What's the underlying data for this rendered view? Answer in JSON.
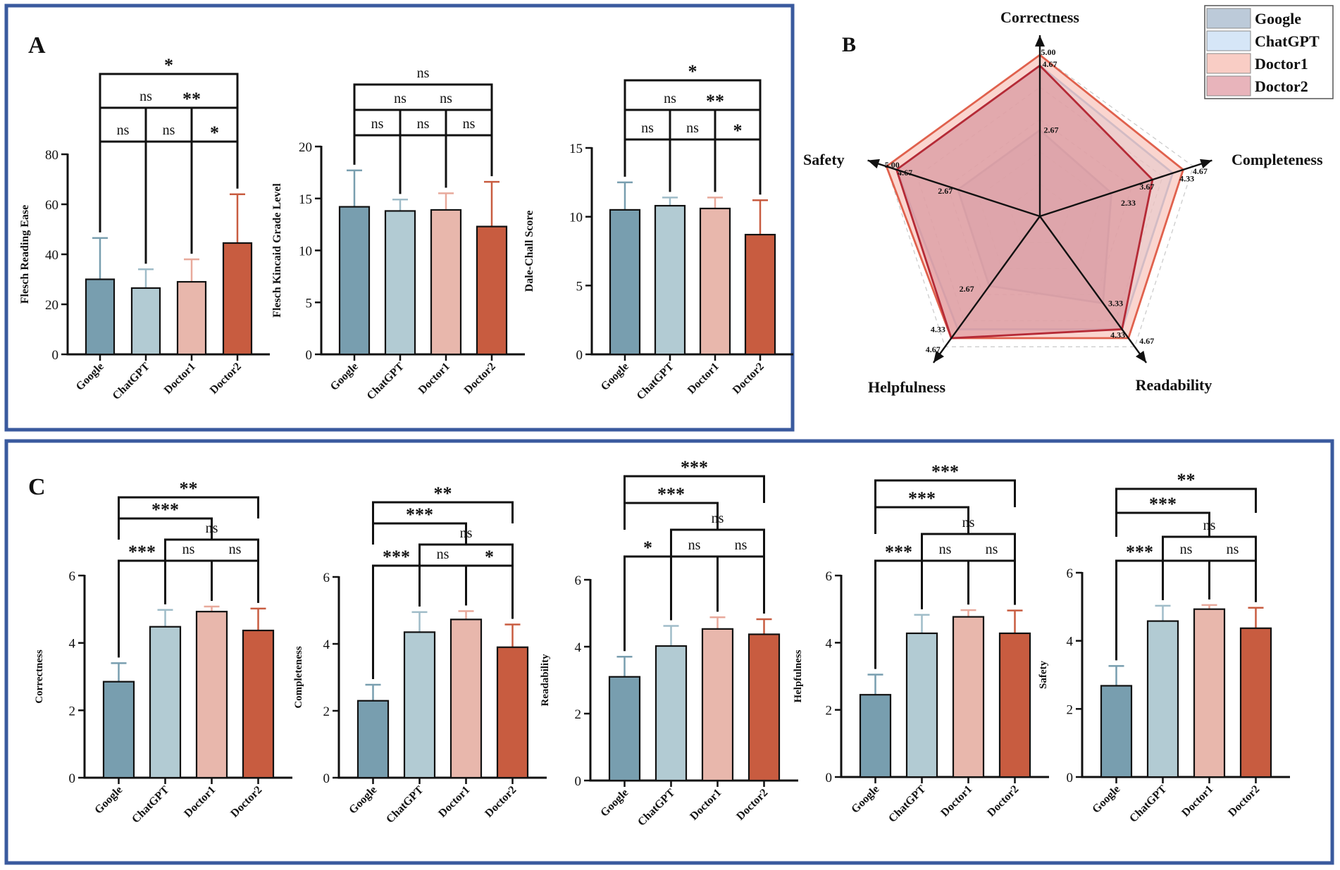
{
  "figure": {
    "panel_letters": {
      "a": "A",
      "b": "B",
      "c": "C"
    },
    "groups": [
      "Google",
      "ChatGPT",
      "Doctor1",
      "Doctor2"
    ],
    "colors": {
      "bars": [
        "#789eaf",
        "#b2cbd3",
        "#e8b7ac",
        "#c85c40"
      ],
      "errs": [
        "#789eaf",
        "#9fbcc8",
        "#e8a99b",
        "#c85c40"
      ],
      "panel_border": "#3a5a9e",
      "radar_lines": [
        "#7f93b2",
        "#a7c6e6",
        "#e0614d",
        "#b52a36"
      ],
      "radar_fills": [
        "#a9b7cc",
        "#cfe1f5",
        "#f6b3a7",
        "#d98a93"
      ],
      "legend_swatches": [
        "#bccad9",
        "#d6e6f7",
        "#f9cdc5",
        "#e8b4bb"
      ]
    }
  },
  "chart_data": [
    {
      "id": "A1",
      "type": "bar",
      "panel": "A",
      "categories": [
        "Google",
        "ChatGPT",
        "Doctor1",
        "Doctor2"
      ],
      "values": [
        30,
        26.5,
        29,
        44.5
      ],
      "errors": [
        16.5,
        7.5,
        9,
        19.5
      ],
      "ylabel": "Flesch Reading Ease",
      "ylim": [
        0,
        80
      ],
      "yticks": [
        0,
        20,
        40,
        60,
        80
      ],
      "tick_labels": [
        "0",
        "20",
        "40",
        "60",
        "80"
      ],
      "significance": [
        {
          "from": 0,
          "to": 1,
          "level": 1,
          "label": "ns"
        },
        {
          "from": 1,
          "to": 2,
          "level": 1,
          "label": "ns"
        },
        {
          "from": 2,
          "to": 3,
          "level": 1,
          "label": "*"
        },
        {
          "from": 0,
          "to": 2,
          "level": 2,
          "label": "ns"
        },
        {
          "from": 1,
          "to": 3,
          "level": 2,
          "label": "**"
        },
        {
          "from": 0,
          "to": 3,
          "level": 3,
          "label": "*"
        }
      ]
    },
    {
      "id": "A2",
      "type": "bar",
      "panel": "A",
      "categories": [
        "Google",
        "ChatGPT",
        "Doctor1",
        "Doctor2"
      ],
      "values": [
        14.2,
        13.8,
        13.9,
        12.3
      ],
      "errors": [
        3.5,
        1.1,
        1.6,
        4.3
      ],
      "ylabel": "Flesch Kincaid Grade Level",
      "ylim": [
        0,
        20
      ],
      "yticks": [
        0,
        5,
        10,
        15,
        20
      ],
      "tick_labels": [
        "0",
        "5",
        "10",
        "15",
        "20"
      ],
      "significance": [
        {
          "from": 0,
          "to": 1,
          "level": 1,
          "label": "ns"
        },
        {
          "from": 1,
          "to": 2,
          "level": 1,
          "label": "ns"
        },
        {
          "from": 2,
          "to": 3,
          "level": 1,
          "label": "ns"
        },
        {
          "from": 0,
          "to": 2,
          "level": 2,
          "label": "ns"
        },
        {
          "from": 1,
          "to": 3,
          "level": 2,
          "label": "ns"
        },
        {
          "from": 0,
          "to": 3,
          "level": 3,
          "label": "ns"
        }
      ]
    },
    {
      "id": "A3",
      "type": "bar",
      "panel": "A",
      "categories": [
        "Google",
        "ChatGPT",
        "Doctor1",
        "Doctor2"
      ],
      "values": [
        10.5,
        10.8,
        10.6,
        8.7
      ],
      "errors": [
        2.0,
        0.6,
        0.8,
        2.5
      ],
      "ylabel": "Dale-Chall Score",
      "ylim": [
        0,
        15
      ],
      "yticks": [
        0,
        5,
        10,
        15
      ],
      "tick_labels": [
        "0",
        "5",
        "10",
        "15"
      ],
      "significance": [
        {
          "from": 0,
          "to": 1,
          "level": 1,
          "label": "ns"
        },
        {
          "from": 1,
          "to": 2,
          "level": 1,
          "label": "ns"
        },
        {
          "from": 2,
          "to": 3,
          "level": 1,
          "label": "*"
        },
        {
          "from": 0,
          "to": 2,
          "level": 2,
          "label": "ns"
        },
        {
          "from": 1,
          "to": 3,
          "level": 2,
          "label": "**"
        },
        {
          "from": 0,
          "to": 3,
          "level": 3,
          "label": "*"
        }
      ]
    },
    {
      "id": "B",
      "type": "radar",
      "panel": "B",
      "axes": [
        "Correctness",
        "Completeness",
        "Readability",
        "Helpfulness",
        "Safety"
      ],
      "rmax": 5,
      "series": [
        {
          "name": "Google",
          "values": [
            2.67,
            2.33,
            3.33,
            2.67,
            2.67
          ]
        },
        {
          "name": "ChatGPT",
          "values": [
            4.67,
            4.33,
            4.33,
            4.33,
            4.67
          ]
        },
        {
          "name": "Doctor1",
          "values": [
            5.0,
            4.67,
            4.67,
            4.67,
            5.0
          ]
        },
        {
          "name": "Doctor2",
          "values": [
            4.67,
            3.67,
            4.33,
            4.67,
            4.67
          ]
        }
      ],
      "value_labels": [
        {
          "axis": 0,
          "value": 5.0,
          "text": "5.00"
        },
        {
          "axis": 0,
          "value": 4.67,
          "text": "4.67"
        },
        {
          "axis": 0,
          "value": 2.67,
          "text": "2.67"
        },
        {
          "axis": 1,
          "value": 4.67,
          "text": "4.67"
        },
        {
          "axis": 1,
          "value": 4.33,
          "text": "4.33"
        },
        {
          "axis": 1,
          "value": 3.67,
          "text": "3.67"
        },
        {
          "axis": 1,
          "value": 2.33,
          "text": "2.33"
        },
        {
          "axis": 2,
          "value": 4.67,
          "text": "4.67"
        },
        {
          "axis": 2,
          "value": 4.33,
          "text": "4.33"
        },
        {
          "axis": 2,
          "value": 3.33,
          "text": "3.33"
        },
        {
          "axis": 3,
          "value": 4.67,
          "text": "4.67"
        },
        {
          "axis": 3,
          "value": 4.33,
          "text": "4.33"
        },
        {
          "axis": 3,
          "value": 2.67,
          "text": "2.67"
        },
        {
          "axis": 4,
          "value": 5.0,
          "text": "5.00"
        },
        {
          "axis": 4,
          "value": 4.67,
          "text": "4.67"
        },
        {
          "axis": 4,
          "value": 2.67,
          "text": "2.67"
        }
      ],
      "legend": [
        "Google",
        "ChatGPT",
        "Doctor1",
        "Doctor2"
      ]
    },
    {
      "id": "C1",
      "type": "bar",
      "panel": "C",
      "categories": [
        "Google",
        "ChatGPT",
        "Doctor1",
        "Doctor2"
      ],
      "values": [
        2.85,
        4.48,
        4.93,
        4.37
      ],
      "errors": [
        0.55,
        0.5,
        0.15,
        0.65
      ],
      "ylabel": "Correctness",
      "ylim": [
        0,
        6
      ],
      "yticks": [
        0,
        2,
        4,
        6
      ],
      "tick_labels": [
        "0",
        "2",
        "4",
        "6"
      ],
      "significance": [
        {
          "from": 0,
          "to": 1,
          "level": 1,
          "label": "***"
        },
        {
          "from": 1,
          "to": 2,
          "level": 1,
          "label": "ns"
        },
        {
          "from": 2,
          "to": 3,
          "level": 1,
          "label": "ns"
        },
        {
          "from": 1,
          "to": 3,
          "level": 2,
          "label": "ns"
        },
        {
          "from": 0,
          "to": 2,
          "level": 3,
          "label": "***"
        },
        {
          "from": 0,
          "to": 3,
          "level": 4,
          "label": "**"
        }
      ]
    },
    {
      "id": "C2",
      "type": "bar",
      "panel": "C",
      "categories": [
        "Google",
        "ChatGPT",
        "Doctor1",
        "Doctor2"
      ],
      "values": [
        2.3,
        4.35,
        4.73,
        3.9
      ],
      "errors": [
        0.48,
        0.6,
        0.25,
        0.68
      ],
      "ylabel": "Completeness",
      "ylim": [
        0,
        6
      ],
      "yticks": [
        0,
        2,
        4,
        6
      ],
      "tick_labels": [
        "0",
        "2",
        "4",
        "6"
      ],
      "significance": [
        {
          "from": 0,
          "to": 1,
          "level": 1,
          "label": "***"
        },
        {
          "from": 1,
          "to": 2,
          "level": 1,
          "label": "ns"
        },
        {
          "from": 2,
          "to": 3,
          "level": 1,
          "label": "*"
        },
        {
          "from": 1,
          "to": 3,
          "level": 2,
          "label": "ns"
        },
        {
          "from": 0,
          "to": 2,
          "level": 3,
          "label": "***"
        },
        {
          "from": 0,
          "to": 3,
          "level": 4,
          "label": "**"
        }
      ]
    },
    {
      "id": "C3",
      "type": "bar",
      "panel": "C",
      "categories": [
        "Google",
        "ChatGPT",
        "Doctor1",
        "Doctor2"
      ],
      "values": [
        3.1,
        4.02,
        4.53,
        4.37
      ],
      "errors": [
        0.6,
        0.6,
        0.35,
        0.45
      ],
      "ylabel": "Readability",
      "ylim": [
        0,
        6
      ],
      "yticks": [
        0,
        2,
        4,
        6
      ],
      "tick_labels": [
        "0",
        "2",
        "4",
        "6"
      ],
      "significance": [
        {
          "from": 0,
          "to": 1,
          "level": 1,
          "label": "*"
        },
        {
          "from": 1,
          "to": 2,
          "level": 1,
          "label": "ns"
        },
        {
          "from": 2,
          "to": 3,
          "level": 1,
          "label": "ns"
        },
        {
          "from": 1,
          "to": 3,
          "level": 2,
          "label": "ns"
        },
        {
          "from": 0,
          "to": 2,
          "level": 3,
          "label": "***"
        },
        {
          "from": 0,
          "to": 3,
          "level": 4,
          "label": "***"
        }
      ]
    },
    {
      "id": "C4",
      "type": "bar",
      "panel": "C",
      "categories": [
        "Google",
        "ChatGPT",
        "Doctor1",
        "Doctor2"
      ],
      "values": [
        2.45,
        4.28,
        4.77,
        4.28
      ],
      "errors": [
        0.6,
        0.55,
        0.2,
        0.68
      ],
      "ylabel": "Helpfulness",
      "ylim": [
        0,
        6
      ],
      "yticks": [
        0,
        2,
        4,
        6
      ],
      "tick_labels": [
        "0",
        "2",
        "4",
        "6"
      ],
      "significance": [
        {
          "from": 0,
          "to": 1,
          "level": 1,
          "label": "***"
        },
        {
          "from": 1,
          "to": 2,
          "level": 1,
          "label": "ns"
        },
        {
          "from": 2,
          "to": 3,
          "level": 1,
          "label": "ns"
        },
        {
          "from": 1,
          "to": 3,
          "level": 2,
          "label": "ns"
        },
        {
          "from": 0,
          "to": 2,
          "level": 3,
          "label": "***"
        },
        {
          "from": 0,
          "to": 3,
          "level": 4,
          "label": "***"
        }
      ]
    },
    {
      "id": "C5",
      "type": "bar",
      "panel": "C",
      "categories": [
        "Google",
        "ChatGPT",
        "Doctor1",
        "Doctor2"
      ],
      "values": [
        2.68,
        4.58,
        4.93,
        4.37
      ],
      "errors": [
        0.58,
        0.45,
        0.12,
        0.6
      ],
      "ylabel": "Safety",
      "ylim": [
        0,
        6
      ],
      "yticks": [
        0,
        2,
        4,
        6
      ],
      "tick_labels": [
        "0",
        "2",
        "4",
        "6"
      ],
      "significance": [
        {
          "from": 0,
          "to": 1,
          "level": 1,
          "label": "***"
        },
        {
          "from": 1,
          "to": 2,
          "level": 1,
          "label": "ns"
        },
        {
          "from": 2,
          "to": 3,
          "level": 1,
          "label": "ns"
        },
        {
          "from": 1,
          "to": 3,
          "level": 2,
          "label": "ns"
        },
        {
          "from": 0,
          "to": 2,
          "level": 3,
          "label": "***"
        },
        {
          "from": 0,
          "to": 3,
          "level": 4,
          "label": "**"
        }
      ]
    }
  ]
}
